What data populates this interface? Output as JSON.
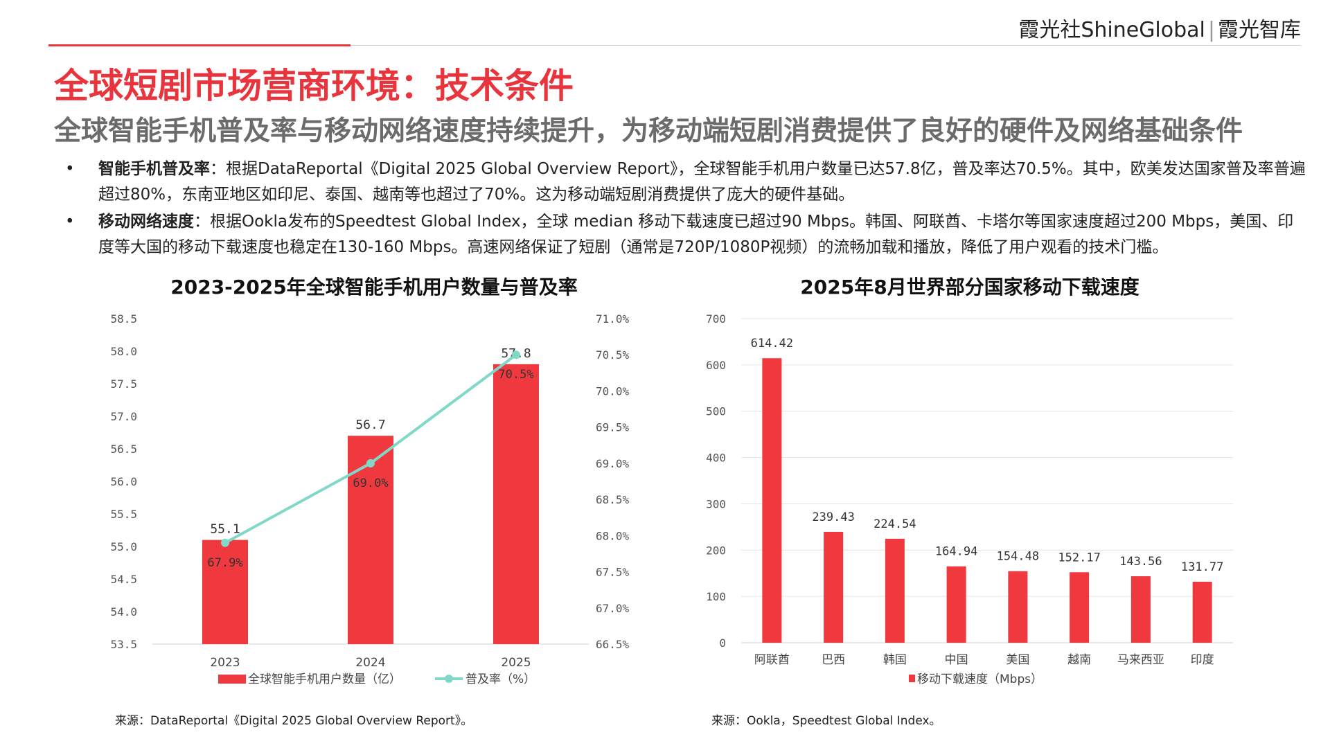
{
  "header": {
    "brand_left": "霞光社ShineGlobal",
    "brand_sep": "|",
    "brand_right": "霞光智库"
  },
  "title": "全球短剧市场营商环境：技术条件",
  "subtitle": "全球智能手机普及率与移动网络速度持续提升，为移动端短剧消费提供了良好的硬件及网络基础条件",
  "bullets": [
    {
      "label": "智能手机普及率",
      "text": "：根据DataReportal《Digital 2025 Global Overview Report》，全球智能手机用户数量已达57.8亿，普及率达70.5%。其中，欧美发达国家普及率普遍超过80%，东南亚地区如印尼、泰国、越南等也超过了70%。这为移动端短剧消费提供了庞大的硬件基础。"
    },
    {
      "label": "移动网络速度",
      "text": "：根据Ookla发布的Speedtest Global Index，全球 median 移动下载速度已超过90 Mbps。韩国、阿联酋、卡塔尔等国家速度超过200 Mbps，美国、印度等大国的移动下载速度也稳定在130-160 Mbps。高速网络保证了短剧（通常是720P/1080P视频）的流畅加载和播放，降低了用户观看的技术门槛。"
    }
  ],
  "chart_data": [
    {
      "type": "bar",
      "title": "2023-2025年全球智能手机用户数量与普及率",
      "categories": [
        "2023",
        "2024",
        "2025"
      ],
      "series": [
        {
          "name": "全球智能手机用户数量（亿）",
          "type": "bar",
          "axis": "left",
          "values": [
            55.1,
            56.7,
            57.8
          ],
          "labels": [
            "55.1",
            "56.7",
            "57.8"
          ],
          "color": "#F0393F"
        },
        {
          "name": "普及率（%）",
          "type": "line",
          "axis": "right",
          "values": [
            67.9,
            69.0,
            70.5
          ],
          "labels": [
            "67.9%",
            "69.0%",
            "70.5%"
          ],
          "color": "#7FD8C8"
        }
      ],
      "y_left": {
        "min": 53.5,
        "max": 58.5,
        "step": 0.5,
        "ticks": [
          "53.5",
          "54.0",
          "54.5",
          "55.0",
          "55.5",
          "56.0",
          "56.5",
          "57.0",
          "57.5",
          "58.0",
          "58.5"
        ]
      },
      "y_right": {
        "min": 66.5,
        "max": 71.0,
        "step": 0.5,
        "ticks": [
          "66.5%",
          "67.0%",
          "67.5%",
          "68.0%",
          "68.5%",
          "69.0%",
          "69.5%",
          "70.0%",
          "70.5%",
          "71.0%"
        ]
      },
      "legend_position": "bottom",
      "grid": false,
      "source": "来源：DataReportal《Digital 2025 Global Overview Report》。"
    },
    {
      "type": "bar",
      "title": "2025年8月世界部分国家移动下载速度",
      "categories": [
        "阿联酋",
        "巴西",
        "韩国",
        "中国",
        "美国",
        "越南",
        "马来西亚",
        "印度"
      ],
      "series": [
        {
          "name": "移动下载速度（Mbps）",
          "values": [
            614.42,
            239.43,
            224.54,
            164.94,
            154.48,
            152.17,
            143.56,
            131.77
          ],
          "labels": [
            "614.42",
            "239.43",
            "224.54",
            "164.94",
            "154.48",
            "152.17",
            "143.56",
            "131.77"
          ],
          "color": "#F0393F"
        }
      ],
      "y": {
        "min": 0,
        "max": 700,
        "step": 100,
        "ticks": [
          "0",
          "100",
          "200",
          "300",
          "400",
          "500",
          "600",
          "700"
        ]
      },
      "legend_position": "bottom",
      "grid": true,
      "source": "来源：Ookla，Speedtest Global Index。"
    }
  ]
}
